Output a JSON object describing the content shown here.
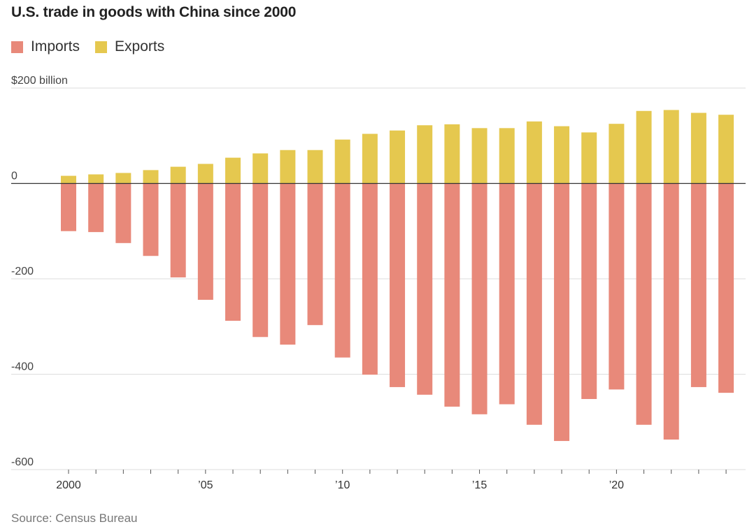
{
  "title": "U.S. trade in goods with China since 2000",
  "source": "Source: Census Bureau",
  "colors": {
    "imports": "#e8897a",
    "exports": "#e5c84f",
    "grid": "#dddddd",
    "zero": "#333333"
  },
  "legend": {
    "imports_label": "Imports",
    "exports_label": "Exports"
  },
  "chart_data": {
    "type": "bar",
    "stacked": "diverging",
    "title": "U.S. trade in goods with China since 2000",
    "ylim": [
      -600,
      200
    ],
    "y_ticks": [
      {
        "value": 200,
        "label": "$200 billion"
      },
      {
        "value": 0,
        "label": "0"
      },
      {
        "value": -200,
        "label": "-200"
      },
      {
        "value": -400,
        "label": "-400"
      },
      {
        "value": -600,
        "label": "-600"
      }
    ],
    "x_ticks": [
      {
        "year": 2000,
        "label": "2000"
      },
      {
        "year": 2005,
        "label": "’05"
      },
      {
        "year": 2010,
        "label": "’10"
      },
      {
        "year": 2015,
        "label": "’15"
      },
      {
        "year": 2020,
        "label": "’20"
      }
    ],
    "categories": [
      2000,
      2001,
      2002,
      2003,
      2004,
      2005,
      2006,
      2007,
      2008,
      2009,
      2010,
      2011,
      2012,
      2013,
      2014,
      2015,
      2016,
      2017,
      2018,
      2019,
      2020,
      2021,
      2022,
      2023,
      2024
    ],
    "series": [
      {
        "name": "Exports",
        "values": [
          16,
          19,
          22,
          28,
          35,
          41,
          54,
          63,
          70,
          70,
          92,
          104,
          111,
          122,
          124,
          116,
          116,
          130,
          120,
          107,
          125,
          152,
          154,
          148,
          144
        ]
      },
      {
        "name": "Imports",
        "values": [
          -100,
          -102,
          -125,
          -152,
          -197,
          -244,
          -288,
          -322,
          -338,
          -297,
          -365,
          -401,
          -427,
          -443,
          -468,
          -484,
          -463,
          -506,
          -540,
          -452,
          -432,
          -506,
          -537,
          -427,
          -439
        ]
      }
    ],
    "grid": true,
    "legend_position": "top-left"
  }
}
